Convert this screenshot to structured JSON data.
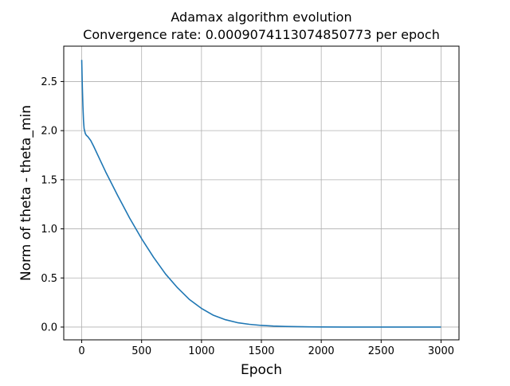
{
  "chart_data": {
    "type": "line",
    "title": "Adamax algorithm evolution",
    "subtitle": "Convergence rate: 0.0009074113074850773 per epoch",
    "xlabel": "Epoch",
    "ylabel": "Norm of  theta - theta_min",
    "xlim": [
      -150,
      3150
    ],
    "ylim": [
      -0.13,
      2.86
    ],
    "xticks": [
      0,
      500,
      1000,
      1500,
      2000,
      2500,
      3000
    ],
    "xtick_labels": [
      "0",
      "500",
      "1000",
      "1500",
      "2000",
      "2500",
      "3000"
    ],
    "yticks": [
      0.0,
      0.5,
      1.0,
      1.5,
      2.0,
      2.5
    ],
    "ytick_labels": [
      "0.0",
      "0.5",
      "1.0",
      "1.5",
      "2.0",
      "2.5"
    ],
    "grid": true,
    "legend": "none",
    "series": [
      {
        "color": "#1f77b4",
        "x": [
          0,
          5,
          10,
          15,
          20,
          30,
          40,
          50,
          75,
          100,
          150,
          200,
          250,
          300,
          400,
          500,
          600,
          700,
          800,
          900,
          1000,
          1100,
          1200,
          1300,
          1400,
          1500,
          1600,
          1700,
          1800,
          1900,
          2000,
          2200,
          2400,
          2600,
          2800,
          3000
        ],
        "y": [
          2.72,
          2.45,
          2.25,
          2.1,
          2.02,
          1.97,
          1.95,
          1.94,
          1.9,
          1.84,
          1.71,
          1.58,
          1.46,
          1.34,
          1.11,
          0.9,
          0.71,
          0.54,
          0.4,
          0.28,
          0.19,
          0.12,
          0.075,
          0.045,
          0.028,
          0.017,
          0.01,
          0.006,
          0.004,
          0.002,
          0.001,
          0.0005,
          0.0002,
          0.0001,
          0.0,
          0.0
        ]
      }
    ]
  }
}
